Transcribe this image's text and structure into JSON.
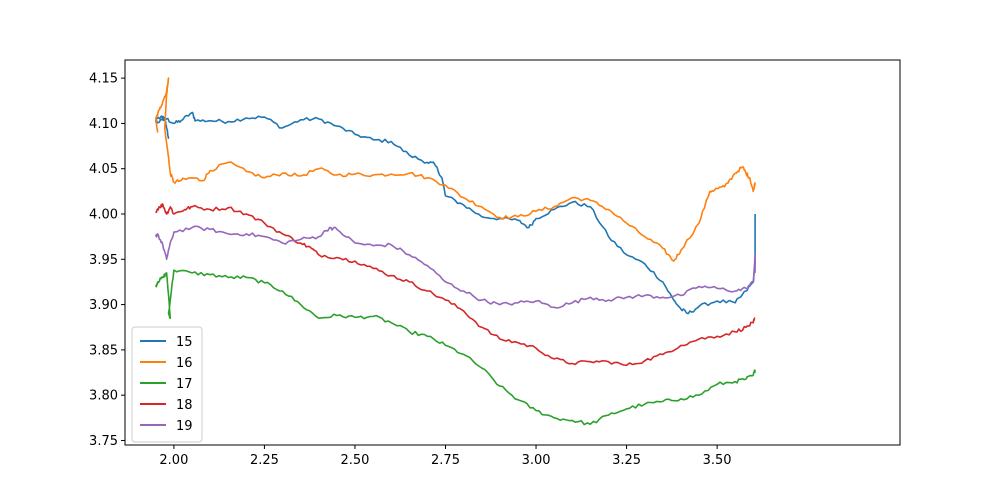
{
  "chart_data": {
    "type": "line",
    "title": "",
    "xlabel": "",
    "ylabel": "",
    "xlim": [
      1.865,
      4.005
    ],
    "ylim": [
      3.745,
      4.17
    ],
    "xticks": [
      2.0,
      2.25,
      2.5,
      2.75,
      3.0,
      3.25,
      3.5
    ],
    "xtick_labels": [
      "2.00",
      "2.25",
      "2.50",
      "2.75",
      "3.00",
      "3.25",
      "3.50"
    ],
    "yticks": [
      3.75,
      3.8,
      3.85,
      3.9,
      3.95,
      4.0,
      4.05,
      4.1,
      4.15
    ],
    "ytick_labels": [
      "3.75",
      "3.80",
      "3.85",
      "3.90",
      "3.95",
      "4.00",
      "4.05",
      "4.10",
      "4.15"
    ],
    "grid": false,
    "legend_position": "lower-left",
    "series": [
      {
        "name": "15",
        "color": "#1f77b4",
        "points": [
          [
            1.985,
            4.083
          ],
          [
            1.98,
            4.095
          ],
          [
            1.975,
            4.105
          ],
          [
            1.965,
            4.108
          ],
          [
            1.95,
            4.103
          ],
          [
            1.955,
            4.101
          ],
          [
            1.98,
            4.105
          ],
          [
            2.0,
            4.1
          ],
          [
            2.02,
            4.103
          ],
          [
            2.05,
            4.112
          ],
          [
            2.06,
            4.103
          ],
          [
            2.1,
            4.103
          ],
          [
            2.15,
            4.102
          ],
          [
            2.2,
            4.106
          ],
          [
            2.25,
            4.107
          ],
          [
            2.3,
            4.095
          ],
          [
            2.35,
            4.104
          ],
          [
            2.4,
            4.105
          ],
          [
            2.45,
            4.097
          ],
          [
            2.5,
            4.088
          ],
          [
            2.55,
            4.082
          ],
          [
            2.6,
            4.08
          ],
          [
            2.65,
            4.065
          ],
          [
            2.7,
            4.057
          ],
          [
            2.72,
            4.055
          ],
          [
            2.74,
            4.04
          ],
          [
            2.75,
            4.02
          ],
          [
            2.8,
            4.01
          ],
          [
            2.85,
            3.997
          ],
          [
            2.9,
            3.995
          ],
          [
            2.95,
            3.993
          ],
          [
            2.98,
            3.985
          ],
          [
            3.0,
            3.995
          ],
          [
            3.05,
            4.005
          ],
          [
            3.1,
            4.013
          ],
          [
            3.15,
            4.008
          ],
          [
            3.2,
            3.975
          ],
          [
            3.25,
            3.955
          ],
          [
            3.3,
            3.945
          ],
          [
            3.35,
            3.925
          ],
          [
            3.38,
            3.905
          ],
          [
            3.4,
            3.895
          ],
          [
            3.42,
            3.89
          ],
          [
            3.45,
            3.898
          ],
          [
            3.5,
            3.904
          ],
          [
            3.55,
            3.902
          ],
          [
            3.58,
            3.915
          ],
          [
            3.6,
            3.925
          ],
          [
            3.605,
            3.945
          ],
          [
            3.605,
            3.965
          ],
          [
            3.605,
            4.0
          ]
        ]
      },
      {
        "name": "16",
        "color": "#ff7f0e",
        "points": [
          [
            1.955,
            4.09
          ],
          [
            1.95,
            4.105
          ],
          [
            1.96,
            4.115
          ],
          [
            1.97,
            4.125
          ],
          [
            1.98,
            4.135
          ],
          [
            1.985,
            4.15
          ],
          [
            1.98,
            4.132
          ],
          [
            1.975,
            4.095
          ],
          [
            1.99,
            4.045
          ],
          [
            2.0,
            4.035
          ],
          [
            2.02,
            4.037
          ],
          [
            2.05,
            4.04
          ],
          [
            2.08,
            4.037
          ],
          [
            2.1,
            4.048
          ],
          [
            2.15,
            4.057
          ],
          [
            2.2,
            4.047
          ],
          [
            2.25,
            4.04
          ],
          [
            2.3,
            4.045
          ],
          [
            2.35,
            4.042
          ],
          [
            2.4,
            4.05
          ],
          [
            2.45,
            4.043
          ],
          [
            2.5,
            4.044
          ],
          [
            2.55,
            4.043
          ],
          [
            2.6,
            4.044
          ],
          [
            2.65,
            4.045
          ],
          [
            2.7,
            4.04
          ],
          [
            2.75,
            4.032
          ],
          [
            2.8,
            4.018
          ],
          [
            2.85,
            4.008
          ],
          [
            2.9,
            3.996
          ],
          [
            2.95,
            3.997
          ],
          [
            3.0,
            4.003
          ],
          [
            3.05,
            4.008
          ],
          [
            3.1,
            4.018
          ],
          [
            3.15,
            4.015
          ],
          [
            3.2,
            4.005
          ],
          [
            3.25,
            3.99
          ],
          [
            3.3,
            3.975
          ],
          [
            3.35,
            3.962
          ],
          [
            3.38,
            3.948
          ],
          [
            3.4,
            3.96
          ],
          [
            3.45,
            3.99
          ],
          [
            3.48,
            4.025
          ],
          [
            3.5,
            4.028
          ],
          [
            3.52,
            4.03
          ],
          [
            3.55,
            4.045
          ],
          [
            3.57,
            4.052
          ],
          [
            3.58,
            4.045
          ],
          [
            3.59,
            4.04
          ],
          [
            3.6,
            4.025
          ],
          [
            3.605,
            4.035
          ]
        ]
      },
      {
        "name": "17",
        "color": "#2ca02c",
        "points": [
          [
            1.95,
            3.92
          ],
          [
            1.955,
            3.925
          ],
          [
            1.97,
            3.93
          ],
          [
            1.98,
            3.935
          ],
          [
            1.99,
            3.885
          ],
          [
            1.985,
            3.89
          ],
          [
            2.0,
            3.938
          ],
          [
            2.05,
            3.935
          ],
          [
            2.1,
            3.933
          ],
          [
            2.15,
            3.93
          ],
          [
            2.2,
            3.93
          ],
          [
            2.25,
            3.924
          ],
          [
            2.3,
            3.915
          ],
          [
            2.35,
            3.9
          ],
          [
            2.4,
            3.885
          ],
          [
            2.45,
            3.888
          ],
          [
            2.5,
            3.886
          ],
          [
            2.55,
            3.887
          ],
          [
            2.6,
            3.88
          ],
          [
            2.65,
            3.87
          ],
          [
            2.7,
            3.865
          ],
          [
            2.75,
            3.855
          ],
          [
            2.8,
            3.845
          ],
          [
            2.85,
            3.83
          ],
          [
            2.9,
            3.81
          ],
          [
            2.95,
            3.795
          ],
          [
            3.0,
            3.783
          ],
          [
            3.05,
            3.775
          ],
          [
            3.1,
            3.772
          ],
          [
            3.15,
            3.768
          ],
          [
            3.2,
            3.778
          ],
          [
            3.25,
            3.785
          ],
          [
            3.3,
            3.79
          ],
          [
            3.35,
            3.793
          ],
          [
            3.4,
            3.796
          ],
          [
            3.45,
            3.8
          ],
          [
            3.5,
            3.812
          ],
          [
            3.55,
            3.815
          ],
          [
            3.58,
            3.818
          ],
          [
            3.6,
            3.822
          ],
          [
            3.605,
            3.828
          ]
        ]
      },
      {
        "name": "18",
        "color": "#d62728",
        "points": [
          [
            1.95,
            4.003
          ],
          [
            1.96,
            4.008
          ],
          [
            1.97,
            4.01
          ],
          [
            1.98,
            4.0
          ],
          [
            1.99,
            4.008
          ],
          [
            2.0,
            4.0
          ],
          [
            2.03,
            4.005
          ],
          [
            2.05,
            4.008
          ],
          [
            2.1,
            4.005
          ],
          [
            2.15,
            4.007
          ],
          [
            2.2,
            4.0
          ],
          [
            2.25,
            3.99
          ],
          [
            2.3,
            3.978
          ],
          [
            2.35,
            3.968
          ],
          [
            2.38,
            3.962
          ],
          [
            2.4,
            3.955
          ],
          [
            2.45,
            3.952
          ],
          [
            2.5,
            3.948
          ],
          [
            2.55,
            3.94
          ],
          [
            2.6,
            3.932
          ],
          [
            2.65,
            3.925
          ],
          [
            2.7,
            3.915
          ],
          [
            2.75,
            3.905
          ],
          [
            2.8,
            3.893
          ],
          [
            2.85,
            3.875
          ],
          [
            2.9,
            3.862
          ],
          [
            2.95,
            3.858
          ],
          [
            3.0,
            3.852
          ],
          [
            3.05,
            3.84
          ],
          [
            3.1,
            3.835
          ],
          [
            3.15,
            3.837
          ],
          [
            3.2,
            3.837
          ],
          [
            3.25,
            3.833
          ],
          [
            3.3,
            3.838
          ],
          [
            3.35,
            3.845
          ],
          [
            3.4,
            3.855
          ],
          [
            3.45,
            3.862
          ],
          [
            3.5,
            3.865
          ],
          [
            3.55,
            3.87
          ],
          [
            3.58,
            3.875
          ],
          [
            3.6,
            3.88
          ],
          [
            3.605,
            3.885
          ]
        ]
      },
      {
        "name": "19",
        "color": "#9467bd",
        "points": [
          [
            1.95,
            3.975
          ],
          [
            1.955,
            3.978
          ],
          [
            1.97,
            3.965
          ],
          [
            1.98,
            3.95
          ],
          [
            1.985,
            3.96
          ],
          [
            2.0,
            3.98
          ],
          [
            2.05,
            3.985
          ],
          [
            2.1,
            3.983
          ],
          [
            2.15,
            3.978
          ],
          [
            2.2,
            3.978
          ],
          [
            2.25,
            3.975
          ],
          [
            2.3,
            3.968
          ],
          [
            2.35,
            3.972
          ],
          [
            2.4,
            3.975
          ],
          [
            2.43,
            3.985
          ],
          [
            2.45,
            3.983
          ],
          [
            2.5,
            3.968
          ],
          [
            2.55,
            3.965
          ],
          [
            2.6,
            3.966
          ],
          [
            2.65,
            3.955
          ],
          [
            2.7,
            3.943
          ],
          [
            2.75,
            3.925
          ],
          [
            2.8,
            3.915
          ],
          [
            2.85,
            3.905
          ],
          [
            2.9,
            3.9
          ],
          [
            2.95,
            3.902
          ],
          [
            3.0,
            3.904
          ],
          [
            3.05,
            3.897
          ],
          [
            3.1,
            3.902
          ],
          [
            3.15,
            3.908
          ],
          [
            3.2,
            3.905
          ],
          [
            3.25,
            3.908
          ],
          [
            3.3,
            3.91
          ],
          [
            3.35,
            3.908
          ],
          [
            3.4,
            3.91
          ],
          [
            3.45,
            3.92
          ],
          [
            3.5,
            3.918
          ],
          [
            3.55,
            3.915
          ],
          [
            3.58,
            3.918
          ],
          [
            3.6,
            3.925
          ],
          [
            3.605,
            3.955
          ],
          [
            3.605,
            3.935
          ]
        ]
      }
    ]
  }
}
